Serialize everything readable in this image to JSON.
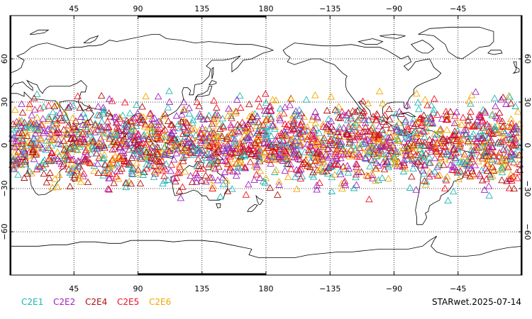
{
  "chart_data": {
    "type": "scatter",
    "projection": "cylindrical-equidistant, centered on Pacific (lon 0 to 360)",
    "lon_range": [
      0,
      360
    ],
    "lat_range": [
      -90,
      90
    ],
    "grid": true,
    "grid_lons": [
      45,
      90,
      135,
      180,
      225,
      270,
      315
    ],
    "grid_lats": [
      -60,
      -30,
      0,
      30,
      60
    ],
    "top_tick_labels": [
      "45",
      "90",
      "135",
      "180",
      "−135",
      "−90",
      "−45"
    ],
    "bottom_tick_labels": [
      "45",
      "90",
      "135",
      "180",
      "−135",
      "−90",
      "−45"
    ],
    "left_tick_labels": [
      "60",
      "30",
      "0",
      "−30",
      "−60"
    ],
    "right_tick_labels": [
      "60",
      "30",
      "0",
      "−30",
      "−60"
    ],
    "marker": "open-triangle",
    "occultation_band_lat": [
      -40,
      42
    ],
    "series": [
      {
        "name": "C2E1",
        "color": "#1fb5b5"
      },
      {
        "name": "C2E2",
        "color": "#a020c0"
      },
      {
        "name": "C2E4",
        "color": "#b01010"
      },
      {
        "name": "C2E5",
        "color": "#f01020"
      },
      {
        "name": "C2E6",
        "color": "#f0a800"
      }
    ]
  },
  "legend": {
    "items": [
      {
        "label": "C2E1",
        "color": "#1fb5b5"
      },
      {
        "label": "C2E2",
        "color": "#a020c0"
      },
      {
        "label": "C2E4",
        "color": "#b01010"
      },
      {
        "label": "C2E5",
        "color": "#f01020"
      },
      {
        "label": "C2E6",
        "color": "#f0a800"
      }
    ]
  },
  "stamp": "STARwet.2025-07-14"
}
